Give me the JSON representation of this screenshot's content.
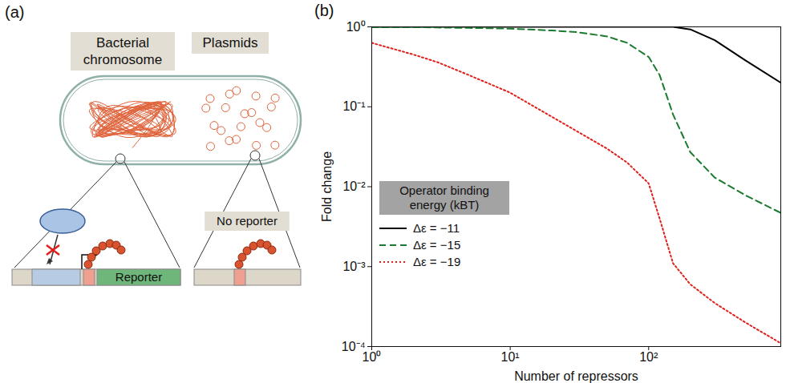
{
  "diagram": {
    "panel_label": "(a)",
    "cell_labels": [
      "Bacterial chromosome",
      "Plasmids"
    ],
    "chromosome_detail": {
      "label": "Reporter"
    },
    "plasmid_detail": {
      "label": "No reporter"
    }
  },
  "chart_data": {
    "type": "line",
    "panel_label": "(b)",
    "x_label": "Number of repressors",
    "y_label": "Fold change",
    "log": true,
    "xlim": [
      1,
      900
    ],
    "ylim": [
      0.0001,
      1
    ],
    "xticks": [
      {
        "value": 1,
        "label": "10⁰"
      },
      {
        "value": 10,
        "label": "10¹"
      },
      {
        "value": 100,
        "label": "10²"
      }
    ],
    "yticks": [
      {
        "value": 0.0001,
        "label": "10⁻⁴"
      },
      {
        "value": 0.001,
        "label": "10⁻³"
      },
      {
        "value": 0.01,
        "label": "10⁻²"
      },
      {
        "value": 0.1,
        "label": "10⁻¹"
      },
      {
        "value": 1,
        "label": "10⁰"
      }
    ],
    "legend": "lower left",
    "legend_title": "Operator binding energy (kBT)",
    "x": [
      1,
      2,
      3,
      5,
      10,
      20,
      30,
      50,
      70,
      100,
      120,
      150,
      200,
      300,
      500,
      900
    ],
    "series": [
      {
        "name": "Δε = −11",
        "color": "#000000",
        "line_style": "solid",
        "values": [
          1,
          1,
          1,
          1,
          1,
          1,
          1,
          1,
          1,
          1,
          1,
          1,
          0.93,
          0.68,
          0.38,
          0.2
        ]
      },
      {
        "name": "Δε = −15",
        "color": "#1a7a2e",
        "line_style": "dashed",
        "values": [
          0.99,
          0.99,
          0.98,
          0.97,
          0.95,
          0.9,
          0.86,
          0.76,
          0.63,
          0.42,
          0.25,
          0.08,
          0.027,
          0.013,
          0.0078,
          0.0047
        ]
      },
      {
        "name": "Δε = −19",
        "color": "#e0201b",
        "line_style": "dotted",
        "values": [
          0.63,
          0.45,
          0.36,
          0.25,
          0.15,
          0.075,
          0.05,
          0.03,
          0.02,
          0.011,
          0.004,
          0.0011,
          0.0006,
          0.00035,
          0.0002,
          0.00011
        ]
      }
    ]
  }
}
